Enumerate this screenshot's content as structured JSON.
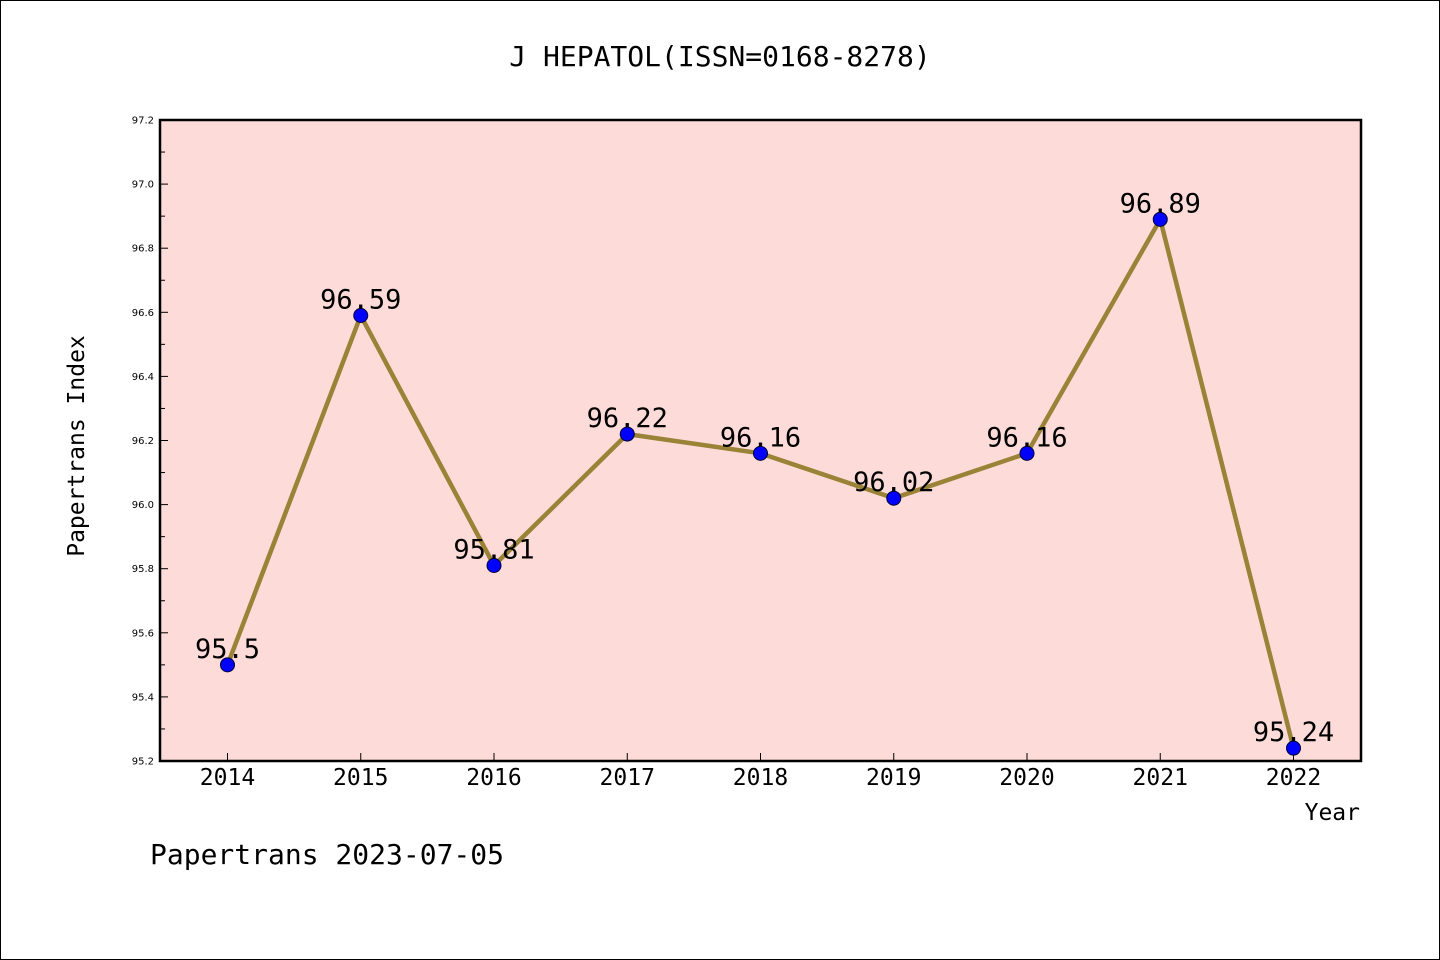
{
  "chart_data": {
    "type": "line",
    "title": "J HEPATOL(ISSN=0168-8278)",
    "xlabel": "Year",
    "ylabel": "Papertrans Index",
    "categories": [
      "2014",
      "2015",
      "2016",
      "2017",
      "2018",
      "2019",
      "2020",
      "2021",
      "2022"
    ],
    "values": [
      95.5,
      96.59,
      95.81,
      96.22,
      96.16,
      96.02,
      96.16,
      96.89,
      95.24
    ],
    "data_labels": [
      "95.5",
      "96.59",
      "95.81",
      "96.22",
      "96.16",
      "96.02",
      "96.16",
      "96.89",
      "95.24"
    ],
    "ylim": [
      95.2,
      97.2
    ],
    "yticks": [
      "95.2",
      "95.4",
      "95.6",
      "95.8",
      "96.0",
      "96.2",
      "96.4",
      "96.6",
      "96.8",
      "97.0",
      "97.2"
    ],
    "grid": false,
    "colors": {
      "plot_background": "#fddbd8",
      "line": "#9a8237",
      "marker": "#0000ff",
      "axis": "#000000"
    }
  },
  "footer": {
    "text": "Papertrans 2023-07-05"
  }
}
